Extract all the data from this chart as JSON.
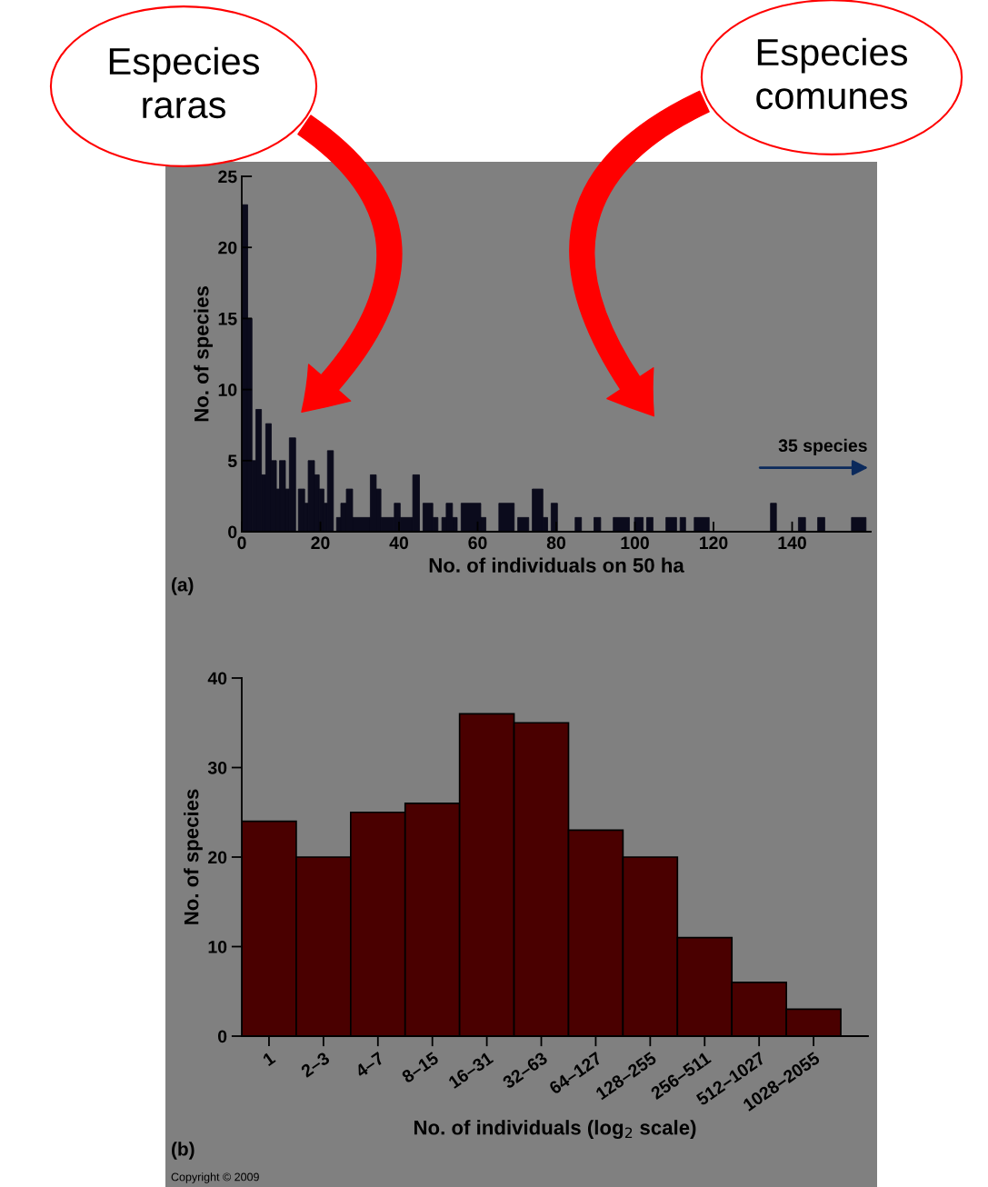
{
  "chart_data": [
    {
      "type": "histogram",
      "xlabel": "No. of individuals on 50 ha",
      "ylabel": "No. of species",
      "color": "#0b0b1c",
      "bins": [
        0,
        1.5,
        2.6,
        3.6,
        5.0,
        6.1,
        7.5,
        8.8,
        9.6,
        11.1,
        12.1,
        13.7,
        14.4,
        16.0,
        16.9,
        18.5,
        19.7,
        20.9,
        21.8,
        23.3,
        24.1,
        25.2,
        26.6,
        28.2,
        32.7,
        34.2,
        35.4,
        38.8,
        40.3,
        43.5,
        45.2,
        46.1,
        48.6,
        49.9,
        50.9,
        52.0,
        53.6,
        54.8,
        55.8,
        60.8,
        62.1,
        65.4,
        69.3,
        70.2,
        73.0,
        73.9,
        76.6,
        77.8,
        78.7,
        80.3,
        84.8,
        86.4,
        89.6,
        91.3,
        94.5,
        98.6,
        99.9,
        102.1,
        103.0,
        104.6,
        107.9,
        110.6,
        111.5,
        112.9,
        115.1,
        118.9,
        134.5,
        136.0,
        141.6,
        143.4,
        146.5,
        148.3,
        155.1,
        158.8
      ],
      "values": [
        23,
        15,
        5,
        8.6,
        4,
        7.6,
        5,
        3,
        5,
        3,
        6.6,
        0,
        3,
        2,
        5,
        4,
        3,
        2,
        5.7,
        0,
        1,
        2,
        3,
        1,
        4,
        3,
        1,
        2,
        1,
        4,
        0,
        2,
        1,
        0,
        1,
        2,
        1,
        0,
        2,
        1,
        0,
        2,
        0,
        1,
        0,
        3,
        1,
        0,
        2,
        0,
        1,
        0,
        1,
        0,
        1,
        0,
        1,
        0,
        1,
        0,
        1,
        0,
        1,
        0,
        1,
        0,
        2,
        0,
        1,
        0,
        1,
        0,
        1
      ],
      "xlim": [
        0,
        160
      ],
      "xticks": [
        0,
        20,
        40,
        60,
        80,
        100,
        120,
        140
      ],
      "ylim": [
        0,
        25
      ],
      "yticks": [
        0,
        5,
        10,
        15,
        20,
        25
      ],
      "grid": false,
      "legend": false,
      "annotations": [
        "(a)",
        "35 species",
        "Especies\nraras",
        "Especies\ncomunes"
      ]
    },
    {
      "type": "bar",
      "xlabel": "No. of individuals (log$_{2}$ scale)",
      "ylabel": "No. of species",
      "color": "#4a0000",
      "categories": [
        "1",
        "2–3",
        "4–7",
        "8–15",
        "16–31",
        "32–63",
        "64–127",
        "128–255",
        "256–511",
        "512–1027",
        "1028–2055"
      ],
      "values": [
        24,
        20,
        25,
        26,
        36,
        35,
        23,
        20,
        11,
        6,
        3
      ],
      "ylim": [
        0,
        40
      ],
      "yticks": [
        0,
        10,
        20,
        30,
        40
      ],
      "grid": false,
      "legend": false,
      "annotations": [
        "(b)",
        "Copyright © 2009"
      ]
    }
  ]
}
